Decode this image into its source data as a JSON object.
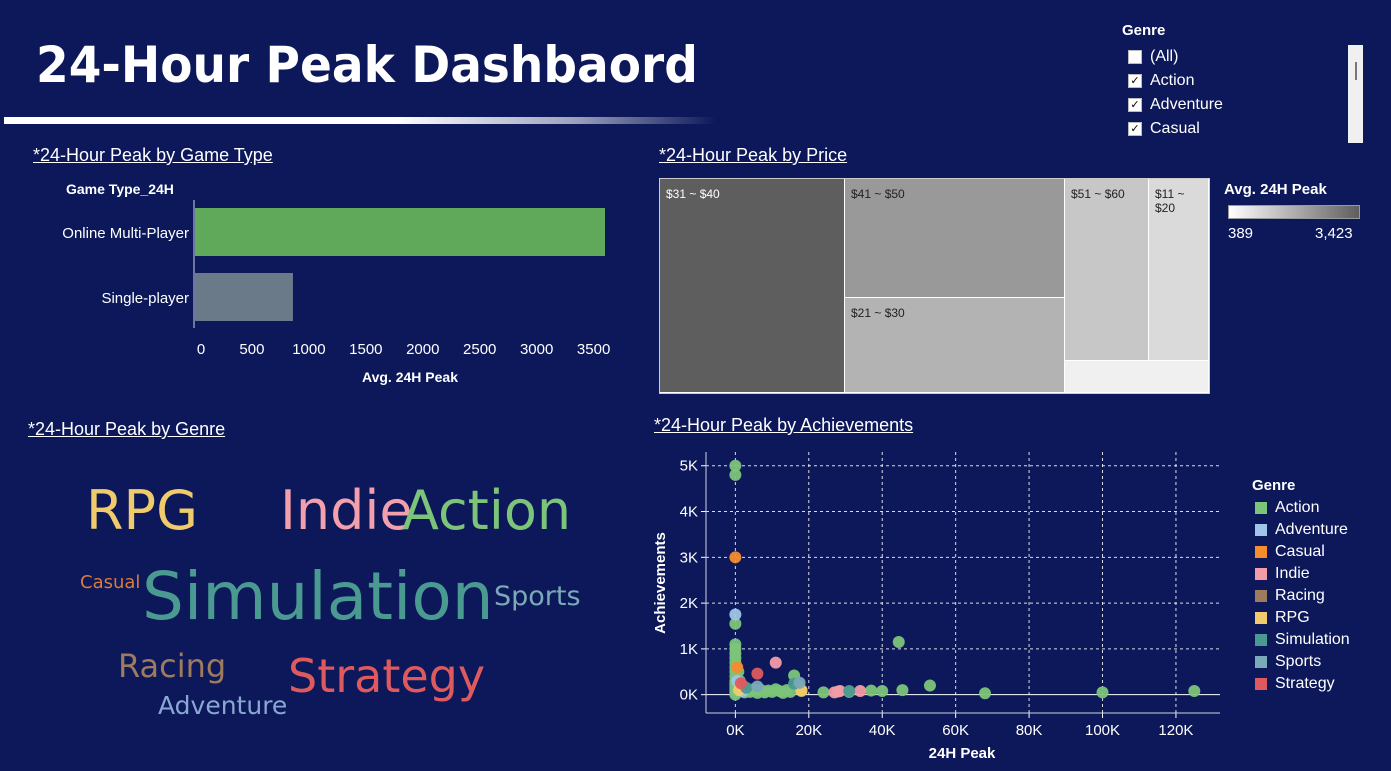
{
  "dashboard_title": "24-Hour Peak Dashbaord",
  "filter": {
    "title": "Genre",
    "items": [
      {
        "label": "(All)",
        "checked": false
      },
      {
        "label": "Action",
        "checked": true
      },
      {
        "label": "Adventure",
        "checked": true
      },
      {
        "label": "Casual",
        "checked": true
      }
    ]
  },
  "sections": {
    "game_type": "*24-Hour Peak by Game Type",
    "price": "*24-Hour Peak by Price",
    "genre": "*24-Hour Peak by Genre",
    "achievements": "*24-Hour Peak by Achievements"
  },
  "chart_data": [
    {
      "type": "bar",
      "orientation": "horizontal",
      "row_header": "Game Type_24H",
      "categories": [
        "Online Multi-Player",
        "Single-player"
      ],
      "values": [
        3600,
        860
      ],
      "colors": [
        "#60a85a",
        "#6b7a88"
      ],
      "xlabel": "Avg. 24H Peak",
      "xlim": [
        0,
        3700
      ],
      "xticks": [
        0,
        500,
        1000,
        1500,
        2000,
        2500,
        3000,
        3500
      ]
    },
    {
      "type": "treemap",
      "color_legend": {
        "title": "Avg. 24H Peak",
        "min_label": "389",
        "max_label": "3,423",
        "min_color": "#ffffff",
        "max_color": "#5e5e5e"
      },
      "tiles": [
        {
          "label": "$31 ~ $40",
          "color": "#5e5e5e",
          "text_color": "#ffffff"
        },
        {
          "label": "$41 ~ $50",
          "color": "#999999",
          "text_color": "#222222"
        },
        {
          "label": "$21 ~ $30",
          "color": "#b3b3b3",
          "text_color": "#222222"
        },
        {
          "label": "$51 ~ $60",
          "color": "#c7c7c7",
          "text_color": "#222222"
        },
        {
          "label": "$11 ~\n$20",
          "color": "#dadada",
          "text_color": "#222222"
        },
        {
          "label": "",
          "color": "#f0f0f0",
          "text_color": "#222222"
        }
      ]
    },
    {
      "type": "wordcloud",
      "words": [
        {
          "text": "RPG",
          "color": "#f0cb6c"
        },
        {
          "text": "Indie",
          "color": "#f4a0ac"
        },
        {
          "text": "Action",
          "color": "#7cc47a"
        },
        {
          "text": "Casual",
          "color": "#d97b3c"
        },
        {
          "text": "Simulation",
          "color": "#4a9a92"
        },
        {
          "text": "Sports",
          "color": "#7aa9b8"
        },
        {
          "text": "Racing",
          "color": "#9e7a5f"
        },
        {
          "text": "Strategy",
          "color": "#df5a5f"
        },
        {
          "text": "Adventure",
          "color": "#8aa7d4"
        }
      ]
    },
    {
      "type": "scatter",
      "xlabel": "24H Peak",
      "ylabel": "Achievements",
      "xlim": [
        -8000,
        132000
      ],
      "ylim": [
        -400,
        5300
      ],
      "xticks": [
        0,
        20000,
        40000,
        60000,
        80000,
        100000,
        120000
      ],
      "xtick_labels": [
        "0K",
        "20K",
        "40K",
        "60K",
        "80K",
        "100K",
        "120K"
      ],
      "yticks": [
        0,
        1000,
        2000,
        3000,
        4000,
        5000
      ],
      "ytick_labels": [
        "0K",
        "1K",
        "2K",
        "3K",
        "4K",
        "5K"
      ],
      "grid": true,
      "legend_title": "Genre",
      "legend_position": "right",
      "series": [
        {
          "name": "Action",
          "color": "#7cc47a",
          "points": [
            [
              0,
              5000
            ],
            [
              0,
              4800
            ],
            [
              0,
              1550
            ],
            [
              0,
              1100
            ],
            [
              0,
              1000
            ],
            [
              0,
              900
            ],
            [
              0,
              800
            ],
            [
              0,
              700
            ],
            [
              0,
              600
            ],
            [
              0,
              500
            ],
            [
              0,
              400
            ],
            [
              0,
              300
            ],
            [
              0,
              250
            ],
            [
              0,
              200
            ],
            [
              0,
              150
            ],
            [
              0,
              100
            ],
            [
              0,
              50
            ],
            [
              0,
              0
            ],
            [
              800,
              500
            ],
            [
              1200,
              300
            ],
            [
              1500,
              150
            ],
            [
              2000,
              100
            ],
            [
              2500,
              50
            ],
            [
              3000,
              80
            ],
            [
              4000,
              60
            ],
            [
              5000,
              120
            ],
            [
              6000,
              40
            ],
            [
              7000,
              100
            ],
            [
              8000,
              50
            ],
            [
              9000,
              90
            ],
            [
              10000,
              60
            ],
            [
              11000,
              120
            ],
            [
              12000,
              80
            ],
            [
              13000,
              40
            ],
            [
              14000,
              100
            ],
            [
              15000,
              60
            ],
            [
              16000,
              420
            ],
            [
              17000,
              200
            ],
            [
              18000,
              80
            ],
            [
              24000,
              50
            ],
            [
              28000,
              70
            ],
            [
              31000,
              60
            ],
            [
              37000,
              90
            ],
            [
              40000,
              80
            ],
            [
              44500,
              1150
            ],
            [
              45500,
              100
            ],
            [
              53000,
              200
            ],
            [
              68000,
              30
            ],
            [
              100000,
              50
            ],
            [
              125000,
              80
            ]
          ]
        },
        {
          "name": "Adventure",
          "color": "#9fc5e8",
          "points": [
            [
              0,
              1750
            ],
            [
              500,
              300
            ],
            [
              2000,
              80
            ]
          ]
        },
        {
          "name": "Casual",
          "color": "#f58c2e",
          "points": [
            [
              0,
              3000
            ],
            [
              500,
              600
            ],
            [
              18000,
              100
            ]
          ]
        },
        {
          "name": "Indie",
          "color": "#f49ba8",
          "points": [
            [
              11000,
              700
            ],
            [
              27000,
              50
            ],
            [
              28500,
              80
            ],
            [
              34000,
              80
            ]
          ]
        },
        {
          "name": "Racing",
          "color": "#9e7a5f",
          "points": [
            [
              2000,
              200
            ]
          ]
        },
        {
          "name": "RPG",
          "color": "#f0cb6c",
          "points": [
            [
              18000,
              90
            ],
            [
              1000,
              100
            ]
          ]
        },
        {
          "name": "Simulation",
          "color": "#4a9a92",
          "points": [
            [
              16000,
              240
            ],
            [
              31000,
              80
            ],
            [
              3000,
              150
            ]
          ]
        },
        {
          "name": "Sports",
          "color": "#7aa9b8",
          "points": [
            [
              17500,
              260
            ],
            [
              6000,
              180
            ]
          ]
        },
        {
          "name": "Strategy",
          "color": "#df5a5f",
          "points": [
            [
              6000,
              460
            ],
            [
              1500,
              250
            ]
          ]
        }
      ]
    }
  ]
}
